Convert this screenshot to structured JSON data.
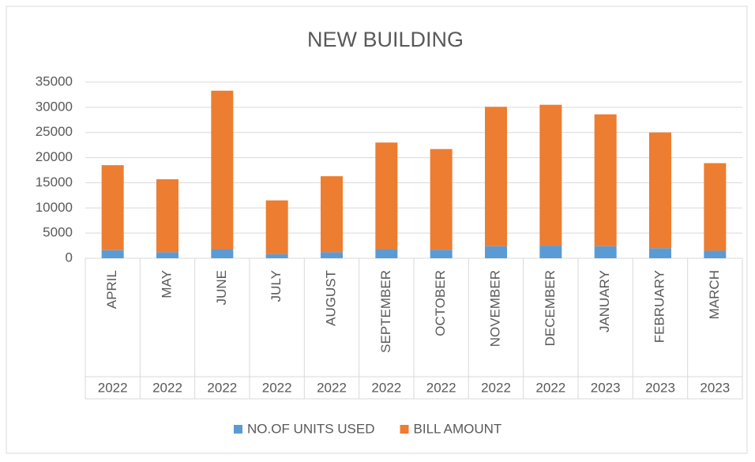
{
  "chart_data": {
    "type": "stacked_bar",
    "title": "NEW BUILDING",
    "categories": [
      "APRIL",
      "MAY",
      "JUNE",
      "JULY",
      "AUGUST",
      "SEPTEMBER",
      "OCTOBER",
      "NOVEMBER",
      "DECEMBER",
      "JANUARY",
      "FEBRUARY",
      "MARCH"
    ],
    "years": [
      "2022",
      "2022",
      "2022",
      "2022",
      "2022",
      "2022",
      "2022",
      "2022",
      "2022",
      "2023",
      "2023",
      "2023"
    ],
    "series": [
      {
        "name": "NO.OF UNITS USED",
        "color": "#5b9bd5",
        "values": [
          1600,
          1200,
          1800,
          800,
          1200,
          1800,
          1700,
          2400,
          2500,
          2400,
          2000,
          1500
        ]
      },
      {
        "name": "BILL AMOUNT",
        "color": "#ed7d31",
        "values": [
          16900,
          14500,
          31500,
          10700,
          15100,
          21200,
          20000,
          27700,
          28000,
          26200,
          23000,
          17400
        ]
      }
    ],
    "ylim": [
      0,
      35000
    ],
    "yticks": [
      0,
      5000,
      10000,
      15000,
      20000,
      25000,
      30000,
      35000
    ],
    "grid": true,
    "legend": "bottom"
  }
}
